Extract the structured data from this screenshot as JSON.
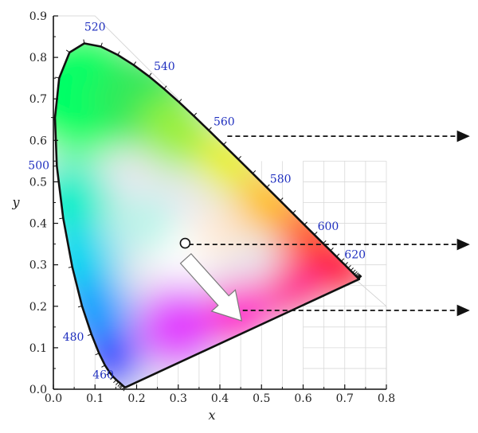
{
  "chart_data": {
    "type": "scatter",
    "title": "",
    "xlabel": "x",
    "ylabel": "y",
    "xlim": [
      0.0,
      0.8
    ],
    "ylim": [
      0.0,
      0.9
    ],
    "xticks": [
      "0.0",
      "0.1",
      "0.2",
      "0.3",
      "0.4",
      "0.5",
      "0.6",
      "0.7",
      "0.8"
    ],
    "yticks": [
      "0.0",
      "0.1",
      "0.2",
      "0.3",
      "0.4",
      "0.5",
      "0.6",
      "0.7",
      "0.8",
      "0.9"
    ],
    "grid": true,
    "spectral_locus": [
      [
        0.1741,
        0.005
      ],
      [
        0.1738,
        0.0049
      ],
      [
        0.1736,
        0.0049
      ],
      [
        0.173,
        0.0048
      ],
      [
        0.1721,
        0.0048
      ],
      [
        0.1703,
        0.0058
      ],
      [
        0.1666,
        0.0089
      ],
      [
        0.1644,
        0.0109
      ],
      [
        0.1611,
        0.0138
      ],
      [
        0.1566,
        0.0177
      ],
      [
        0.151,
        0.0227
      ],
      [
        0.144,
        0.0297
      ],
      [
        0.1355,
        0.0399
      ],
      [
        0.1241,
        0.0578
      ],
      [
        0.1096,
        0.0868
      ],
      [
        0.0913,
        0.1327
      ],
      [
        0.0687,
        0.2007
      ],
      [
        0.0454,
        0.295
      ],
      [
        0.0235,
        0.4127
      ],
      [
        0.0082,
        0.5384
      ],
      [
        0.0039,
        0.6548
      ],
      [
        0.0139,
        0.7502
      ],
      [
        0.0389,
        0.812
      ],
      [
        0.0743,
        0.8338
      ],
      [
        0.1142,
        0.8262
      ],
      [
        0.1547,
        0.8059
      ],
      [
        0.1929,
        0.7816
      ],
      [
        0.2296,
        0.7543
      ],
      [
        0.2658,
        0.7243
      ],
      [
        0.3016,
        0.6923
      ],
      [
        0.3373,
        0.6589
      ],
      [
        0.3731,
        0.6245
      ],
      [
        0.4087,
        0.5896
      ],
      [
        0.4441,
        0.5547
      ],
      [
        0.4788,
        0.5202
      ],
      [
        0.5125,
        0.4866
      ],
      [
        0.5448,
        0.4544
      ],
      [
        0.5752,
        0.4242
      ],
      [
        0.6029,
        0.3965
      ],
      [
        0.627,
        0.3725
      ],
      [
        0.6482,
        0.3514
      ],
      [
        0.6658,
        0.334
      ],
      [
        0.6801,
        0.3197
      ],
      [
        0.6915,
        0.3083
      ],
      [
        0.7006,
        0.2993
      ],
      [
        0.7079,
        0.292
      ],
      [
        0.714,
        0.2859
      ],
      [
        0.719,
        0.2809
      ],
      [
        0.723,
        0.277
      ],
      [
        0.726,
        0.274
      ],
      [
        0.7283,
        0.2717
      ],
      [
        0.73,
        0.27
      ],
      [
        0.7311,
        0.2689
      ],
      [
        0.732,
        0.268
      ],
      [
        0.7327,
        0.2673
      ],
      [
        0.7334,
        0.2666
      ],
      [
        0.734,
        0.266
      ],
      [
        0.7344,
        0.2656
      ],
      [
        0.7346,
        0.2654
      ],
      [
        0.7347,
        0.2653
      ]
    ],
    "wavelength_labels": [
      {
        "text": "460",
        "x": 0.144,
        "y": 0.0297,
        "dx": -26,
        "dy": 2
      },
      {
        "text": "480",
        "x": 0.0913,
        "y": 0.1327,
        "dx": -36,
        "dy": 8
      },
      {
        "text": "500",
        "x": 0.0082,
        "y": 0.5384,
        "dx": -36,
        "dy": 4
      },
      {
        "text": "520",
        "x": 0.0743,
        "y": 0.8338,
        "dx": 0,
        "dy": -16
      },
      {
        "text": "540",
        "x": 0.2296,
        "y": 0.7543,
        "dx": 6,
        "dy": -8
      },
      {
        "text": "560",
        "x": 0.3731,
        "y": 0.6245,
        "dx": 6,
        "dy": -6
      },
      {
        "text": "580",
        "x": 0.5125,
        "y": 0.4866,
        "dx": 4,
        "dy": -6
      },
      {
        "text": "600",
        "x": 0.627,
        "y": 0.3725,
        "dx": 4,
        "dy": -6
      },
      {
        "text": "620",
        "x": 0.6915,
        "y": 0.3083,
        "dx": 4,
        "dy": -4
      }
    ],
    "white_point": {
      "x": 0.3127,
      "y": 0.329
    },
    "arrow": {
      "from": [
        0.318,
        0.315
      ],
      "to": [
        0.452,
        0.165
      ]
    },
    "leaders": [
      {
        "from": [
          0.418,
          0.61
        ]
      },
      {
        "from": [
          0.325,
          0.349
        ]
      },
      {
        "from": [
          0.455,
          0.19
        ]
      }
    ],
    "colors": {
      "locus": "#111111",
      "wavelength_text": "#1f2fbf",
      "leader": "#111111",
      "arrow_fill": "#ffffff",
      "arrow_stroke": "#7a7a7a"
    }
  }
}
